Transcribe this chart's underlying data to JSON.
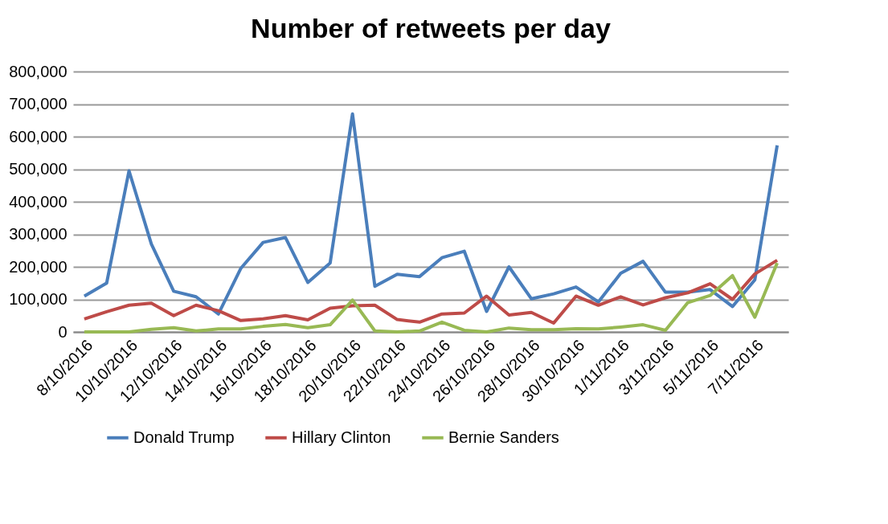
{
  "chart_data": {
    "type": "line",
    "title": "Number of retweets per day",
    "categories": [
      "8/10/2016",
      null,
      "10/10/2016",
      null,
      "12/10/2016",
      null,
      "14/10/2016",
      null,
      "16/10/2016",
      null,
      "18/10/2016",
      null,
      "20/10/2016",
      null,
      "22/10/2016",
      null,
      "24/10/2016",
      null,
      "26/10/2016",
      null,
      "28/10/2016",
      null,
      "30/10/2016",
      null,
      "1/11/2016",
      null,
      "3/11/2016",
      null,
      "5/11/2016",
      null,
      "7/11/2016",
      null
    ],
    "series": [
      {
        "name": "Donald Trump",
        "color": "#4a7ebb",
        "values": [
          110000,
          150000,
          495000,
          270000,
          125000,
          108000,
          55000,
          195000,
          275000,
          290000,
          152000,
          212000,
          670000,
          140000,
          177000,
          170000,
          228000,
          248000,
          63000,
          200000,
          102000,
          117000,
          138000,
          92000,
          180000,
          217000,
          122000,
          122000,
          130000,
          78000,
          160000,
          573000
        ]
      },
      {
        "name": "Hillary Clinton",
        "color": "#be4b48",
        "values": [
          40000,
          62000,
          82000,
          88000,
          50000,
          82000,
          65000,
          35000,
          40000,
          50000,
          37000,
          73000,
          80000,
          82000,
          38000,
          30000,
          55000,
          58000,
          110000,
          52000,
          60000,
          27000,
          110000,
          82000,
          108000,
          83000,
          105000,
          120000,
          148000,
          100000,
          178000,
          220000
        ]
      },
      {
        "name": "Bernie Sanders",
        "color": "#98b954",
        "values": [
          0,
          0,
          0,
          8000,
          13000,
          3000,
          9000,
          9000,
          17000,
          23000,
          13000,
          22000,
          98000,
          3000,
          0,
          3000,
          30000,
          5000,
          0,
          12000,
          7000,
          7000,
          10000,
          9000,
          15000,
          22000,
          5000,
          90000,
          112000,
          173000,
          45000,
          212000
        ]
      }
    ],
    "ylim": [
      0,
      800000
    ],
    "yticks": [
      0,
      {
        "value": 100000,
        "label": "100,000"
      },
      {
        "value": 200000,
        "label": "200,000"
      },
      {
        "value": 300000,
        "label": "300,000"
      },
      {
        "value": 400000,
        "label": "400,000"
      },
      {
        "value": 500000,
        "label": "500,000"
      },
      {
        "value": 600000,
        "label": "600,000"
      },
      {
        "value": 700000,
        "label": "700,000"
      },
      {
        "value": 800000,
        "label": "800,000"
      }
    ],
    "grid": "y",
    "legend": "bottom",
    "marker": "none",
    "line_style": "solid"
  }
}
